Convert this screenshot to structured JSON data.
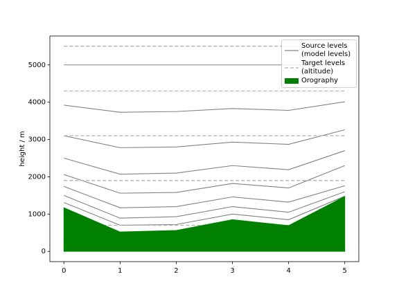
{
  "chart_data": {
    "type": "line",
    "y_label": "height / m",
    "x": [
      0,
      1,
      2,
      3,
      4,
      5
    ],
    "xlim": [
      -0.25,
      5.25
    ],
    "xticks": [
      0,
      1,
      2,
      3,
      4,
      5
    ],
    "ylim": [
      -275,
      5775
    ],
    "yticks": [
      0,
      1000,
      2000,
      3000,
      4000,
      5000
    ],
    "legend_position": "upper right",
    "series": [
      {
        "name": "Source levels\n(model levels)",
        "color": "#808080",
        "style": "solid",
        "lines": [
          [
            5000,
            5000,
            5000,
            5000,
            5000,
            5000
          ],
          [
            3920,
            3730,
            3750,
            3830,
            3780,
            4010
          ],
          [
            3100,
            2780,
            2800,
            2930,
            2870,
            3260
          ],
          [
            2500,
            2070,
            2100,
            2300,
            2190,
            2700
          ],
          [
            2060,
            1560,
            1580,
            1820,
            1700,
            2300
          ],
          [
            1740,
            1170,
            1200,
            1460,
            1320,
            1760
          ],
          [
            1500,
            890,
            930,
            1200,
            1050,
            1600
          ],
          [
            1310,
            700,
            720,
            1000,
            850,
            1480
          ]
        ]
      },
      {
        "name": "Target levels\n(altitude)",
        "color": "#b0b0b0",
        "style": "dashed",
        "levels": [
          700,
          1900,
          3100,
          4300,
          5500
        ]
      },
      {
        "name": "Orography",
        "color": "#008000",
        "style": "area",
        "values": [
          1170,
          520,
          560,
          850,
          690,
          1470
        ]
      }
    ]
  }
}
